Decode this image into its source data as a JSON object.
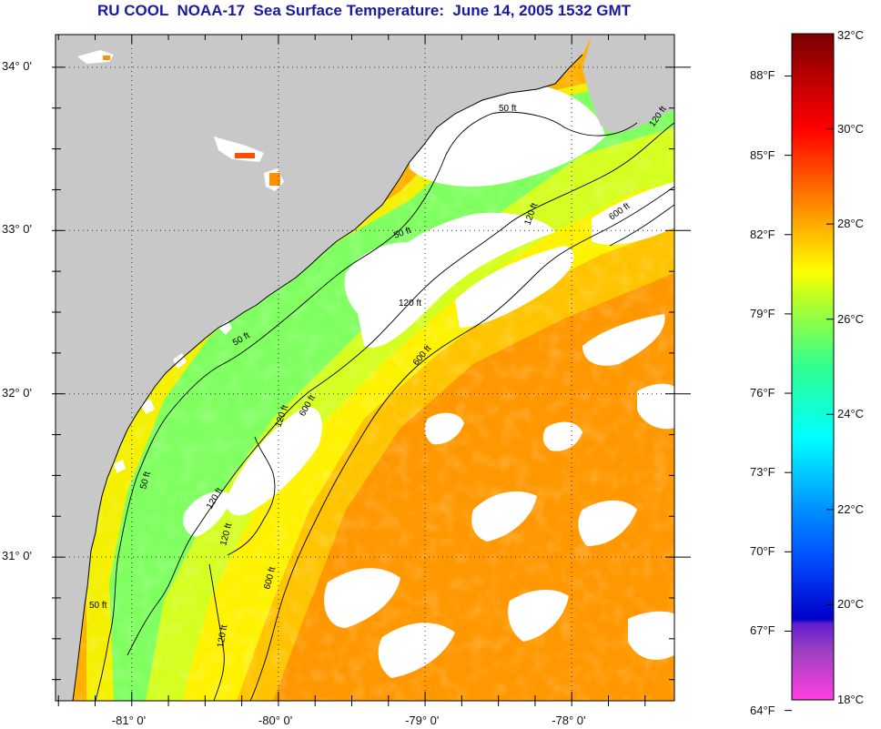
{
  "title": "RU COOL  NOAA-17  Sea Surface Temperature:  June 14, 2005 1532 GMT",
  "map": {
    "lon_range": [
      -81.52,
      -77.3
    ],
    "lat_range": [
      30.12,
      34.2
    ],
    "lat_labels": [
      "34° 0'",
      "33° 0'",
      "32° 0'",
      "31° 0'"
    ],
    "lat_values": [
      34,
      33,
      32,
      31
    ],
    "lon_labels": [
      "-81° 0'",
      "-80° 0'",
      "-79° 0'",
      "-78° 0'"
    ],
    "lon_values": [
      -81,
      -80,
      -79,
      -78
    ],
    "contour_labels": [
      "50 ft",
      "120 ft",
      "600 ft",
      "50 ft",
      "120 ft",
      "600 ft",
      "50 ft",
      "120 ft",
      "600 ft",
      "120 ft",
      "120 ft",
      "50 ft",
      "120 ft",
      "50 ft",
      "600 ft",
      "120 ft"
    ],
    "colors": {
      "land": "#c8c8c8",
      "cloud": "#ffffff",
      "grid": "#333333",
      "contour": "#000000"
    }
  },
  "colorbar": {
    "celsius_labels": [
      "32°C",
      "30°C",
      "28°C",
      "26°C",
      "24°C",
      "22°C",
      "20°C",
      "18°C"
    ],
    "celsius_values": [
      32,
      30,
      28,
      26,
      24,
      22,
      20,
      18
    ],
    "fahrenheit_labels": [
      "88°F",
      "85°F",
      "82°F",
      "79°F",
      "76°F",
      "73°F",
      "70°F",
      "67°F",
      "64°F"
    ],
    "fahrenheit_values": [
      88,
      85,
      82,
      79,
      76,
      73,
      70,
      67,
      64
    ],
    "range_c": [
      18,
      32
    ],
    "stops": [
      {
        "c": 18,
        "color": "#ff40e0"
      },
      {
        "c": 19,
        "color": "#a040c0"
      },
      {
        "c": 19.6,
        "color": "#6020d0"
      },
      {
        "c": 19.7,
        "color": "#0000c8"
      },
      {
        "c": 21,
        "color": "#0050ff"
      },
      {
        "c": 22,
        "color": "#0090ff"
      },
      {
        "c": 23.5,
        "color": "#00ffff"
      },
      {
        "c": 25,
        "color": "#30ff90"
      },
      {
        "c": 26.5,
        "color": "#c0ff20"
      },
      {
        "c": 27,
        "color": "#ffff00"
      },
      {
        "c": 28.3,
        "color": "#ff9000"
      },
      {
        "c": 30,
        "color": "#ff0000"
      },
      {
        "c": 31,
        "color": "#c00000"
      },
      {
        "c": 32,
        "color": "#780000"
      }
    ]
  }
}
